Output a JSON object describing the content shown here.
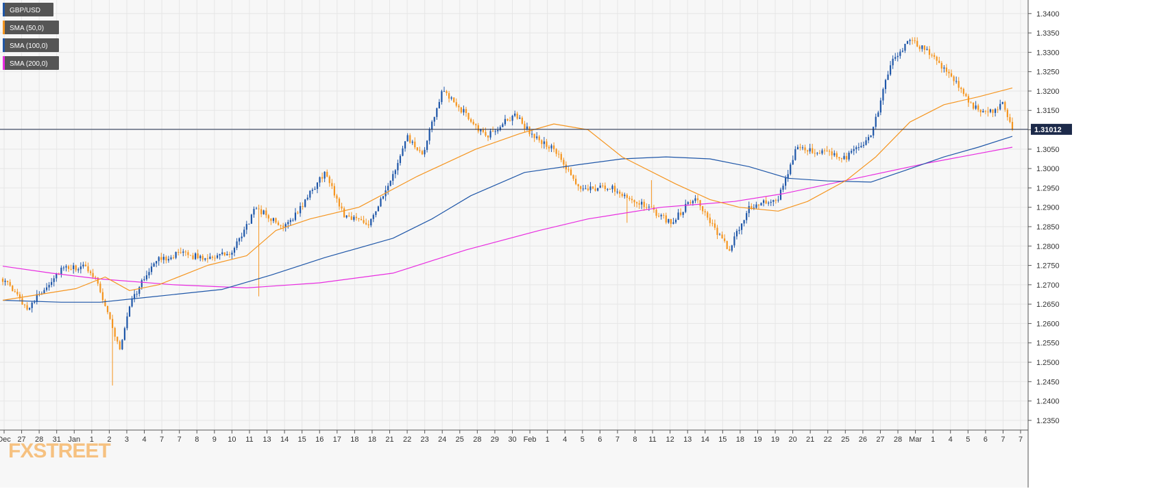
{
  "chart_data": {
    "type": "candlestick",
    "symbol": "GBP/USD",
    "last_price": "1.31012",
    "last_value": 1.31012,
    "watermark": "FXSTREET",
    "grid": true,
    "legend_position": "top-left",
    "ylim": [
      1.2325,
      1.3435
    ],
    "y_ticks": [
      "1.2350",
      "1.2400",
      "1.2450",
      "1.2500",
      "1.2550",
      "1.2600",
      "1.2650",
      "1.2700",
      "1.2750",
      "1.2800",
      "1.2850",
      "1.2900",
      "1.2950",
      "1.3000",
      "1.3050",
      "1.3100",
      "1.3150",
      "1.3200",
      "1.3250",
      "1.3300",
      "1.3350",
      "1.3400"
    ],
    "x_labels": [
      "Dec",
      "27",
      "28",
      "31",
      "Jan",
      "1",
      "2",
      "3",
      "4",
      "7",
      "7",
      "8",
      "9",
      "10",
      "11",
      "13",
      "14",
      "15",
      "16",
      "17",
      "18",
      "18",
      "21",
      "22",
      "23",
      "24",
      "25",
      "28",
      "29",
      "30",
      "Feb",
      "1",
      "4",
      "5",
      "6",
      "7",
      "8",
      "11",
      "12",
      "13",
      "14",
      "15",
      "18",
      "19",
      "19",
      "20",
      "21",
      "22",
      "25",
      "26",
      "27",
      "28",
      "Mar",
      "1",
      "4",
      "5",
      "6",
      "7",
      "7"
    ],
    "colors": {
      "up": "#1e56a8",
      "down": "#f5951f",
      "sma50": "#f5951f",
      "sma100": "#1e56a8",
      "sma200": "#e82be0",
      "price_line": "#1c2a4a",
      "grid": "#e6e6e6",
      "background": "#f7f7f7",
      "price_box": "#1c2a4a",
      "watermark": "#f5951f"
    },
    "legend": [
      {
        "label": "GBP/USD",
        "color": "#1e56a8"
      },
      {
        "label": "SMA (50,0)",
        "color": "#f5951f"
      },
      {
        "label": "SMA (100,0)",
        "color": "#1e56a8"
      },
      {
        "label": "SMA (200,0)",
        "color": "#e82be0"
      }
    ],
    "anchors": [
      {
        "i": 0,
        "p": 1.2715
      },
      {
        "i": 10,
        "p": 1.264
      },
      {
        "i": 24,
        "p": 1.274
      },
      {
        "i": 34,
        "p": 1.2745
      },
      {
        "i": 38,
        "p": 1.272
      },
      {
        "i": 44,
        "p": 1.261
      },
      {
        "i": 48,
        "p": 1.253
      },
      {
        "i": 52,
        "p": 1.265
      },
      {
        "i": 62,
        "p": 1.276
      },
      {
        "i": 72,
        "p": 1.278
      },
      {
        "i": 82,
        "p": 1.277
      },
      {
        "i": 94,
        "p": 1.278
      },
      {
        "i": 104,
        "p": 1.29
      },
      {
        "i": 114,
        "p": 1.285
      },
      {
        "i": 120,
        "p": 1.288
      },
      {
        "i": 132,
        "p": 1.299
      },
      {
        "i": 140,
        "p": 1.288
      },
      {
        "i": 150,
        "p": 1.286
      },
      {
        "i": 158,
        "p": 1.295
      },
      {
        "i": 166,
        "p": 1.308
      },
      {
        "i": 172,
        "p": 1.303
      },
      {
        "i": 180,
        "p": 1.32
      },
      {
        "i": 190,
        "p": 1.314
      },
      {
        "i": 198,
        "p": 1.308
      },
      {
        "i": 210,
        "p": 1.314
      },
      {
        "i": 218,
        "p": 1.308
      },
      {
        "i": 226,
        "p": 1.305
      },
      {
        "i": 236,
        "p": 1.295
      },
      {
        "i": 250,
        "p": 1.295
      },
      {
        "i": 264,
        "p": 1.29
      },
      {
        "i": 274,
        "p": 1.286
      },
      {
        "i": 284,
        "p": 1.293
      },
      {
        "i": 292,
        "p": 1.284
      },
      {
        "i": 298,
        "p": 1.279
      },
      {
        "i": 306,
        "p": 1.29
      },
      {
        "i": 318,
        "p": 1.292
      },
      {
        "i": 326,
        "p": 1.306
      },
      {
        "i": 336,
        "p": 1.304
      },
      {
        "i": 346,
        "p": 1.303
      },
      {
        "i": 356,
        "p": 1.308
      },
      {
        "i": 364,
        "p": 1.327
      },
      {
        "i": 372,
        "p": 1.333
      },
      {
        "i": 380,
        "p": 1.33
      },
      {
        "i": 390,
        "p": 1.323
      },
      {
        "i": 396,
        "p": 1.317
      },
      {
        "i": 404,
        "p": 1.314
      },
      {
        "i": 410,
        "p": 1.317
      },
      {
        "i": 414,
        "p": 1.3101
      }
    ],
    "sma50": [
      {
        "i": 0,
        "v": 1.266
      },
      {
        "i": 30,
        "v": 1.269
      },
      {
        "i": 42,
        "v": 1.272
      },
      {
        "i": 52,
        "v": 1.2685
      },
      {
        "i": 64,
        "v": 1.27
      },
      {
        "i": 84,
        "v": 1.275
      },
      {
        "i": 100,
        "v": 1.2775
      },
      {
        "i": 112,
        "v": 1.284
      },
      {
        "i": 126,
        "v": 1.287
      },
      {
        "i": 146,
        "v": 1.29
      },
      {
        "i": 170,
        "v": 1.298
      },
      {
        "i": 194,
        "v": 1.305
      },
      {
        "i": 212,
        "v": 1.309
      },
      {
        "i": 226,
        "v": 1.3115
      },
      {
        "i": 240,
        "v": 1.31
      },
      {
        "i": 254,
        "v": 1.303
      },
      {
        "i": 276,
        "v": 1.296
      },
      {
        "i": 290,
        "v": 1.292
      },
      {
        "i": 302,
        "v": 1.29
      },
      {
        "i": 318,
        "v": 1.289
      },
      {
        "i": 330,
        "v": 1.2915
      },
      {
        "i": 346,
        "v": 1.297
      },
      {
        "i": 358,
        "v": 1.303
      },
      {
        "i": 372,
        "v": 1.312
      },
      {
        "i": 386,
        "v": 1.3165
      },
      {
        "i": 400,
        "v": 1.3185
      },
      {
        "i": 414,
        "v": 1.3208
      }
    ],
    "sma100": [
      {
        "i": 0,
        "v": 1.266
      },
      {
        "i": 24,
        "v": 1.2655
      },
      {
        "i": 40,
        "v": 1.2655
      },
      {
        "i": 60,
        "v": 1.2668
      },
      {
        "i": 90,
        "v": 1.2688
      },
      {
        "i": 110,
        "v": 1.2725
      },
      {
        "i": 132,
        "v": 1.277
      },
      {
        "i": 160,
        "v": 1.282
      },
      {
        "i": 176,
        "v": 1.287
      },
      {
        "i": 192,
        "v": 1.293
      },
      {
        "i": 214,
        "v": 1.299
      },
      {
        "i": 236,
        "v": 1.301
      },
      {
        "i": 254,
        "v": 1.3025
      },
      {
        "i": 272,
        "v": 1.303
      },
      {
        "i": 290,
        "v": 1.3025
      },
      {
        "i": 306,
        "v": 1.3005
      },
      {
        "i": 322,
        "v": 1.2975
      },
      {
        "i": 338,
        "v": 1.2968
      },
      {
        "i": 356,
        "v": 1.2965
      },
      {
        "i": 370,
        "v": 1.2995
      },
      {
        "i": 386,
        "v": 1.303
      },
      {
        "i": 400,
        "v": 1.3055
      },
      {
        "i": 414,
        "v": 1.3083
      }
    ],
    "sma200": [
      {
        "i": 0,
        "v": 1.2748
      },
      {
        "i": 20,
        "v": 1.273
      },
      {
        "i": 40,
        "v": 1.2715
      },
      {
        "i": 70,
        "v": 1.27
      },
      {
        "i": 100,
        "v": 1.2692
      },
      {
        "i": 130,
        "v": 1.2705
      },
      {
        "i": 160,
        "v": 1.273
      },
      {
        "i": 190,
        "v": 1.279
      },
      {
        "i": 220,
        "v": 1.284
      },
      {
        "i": 240,
        "v": 1.287
      },
      {
        "i": 270,
        "v": 1.29
      },
      {
        "i": 300,
        "v": 1.2915
      },
      {
        "i": 320,
        "v": 1.2935
      },
      {
        "i": 350,
        "v": 1.2975
      },
      {
        "i": 380,
        "v": 1.3015
      },
      {
        "i": 414,
        "v": 1.3055
      }
    ]
  }
}
